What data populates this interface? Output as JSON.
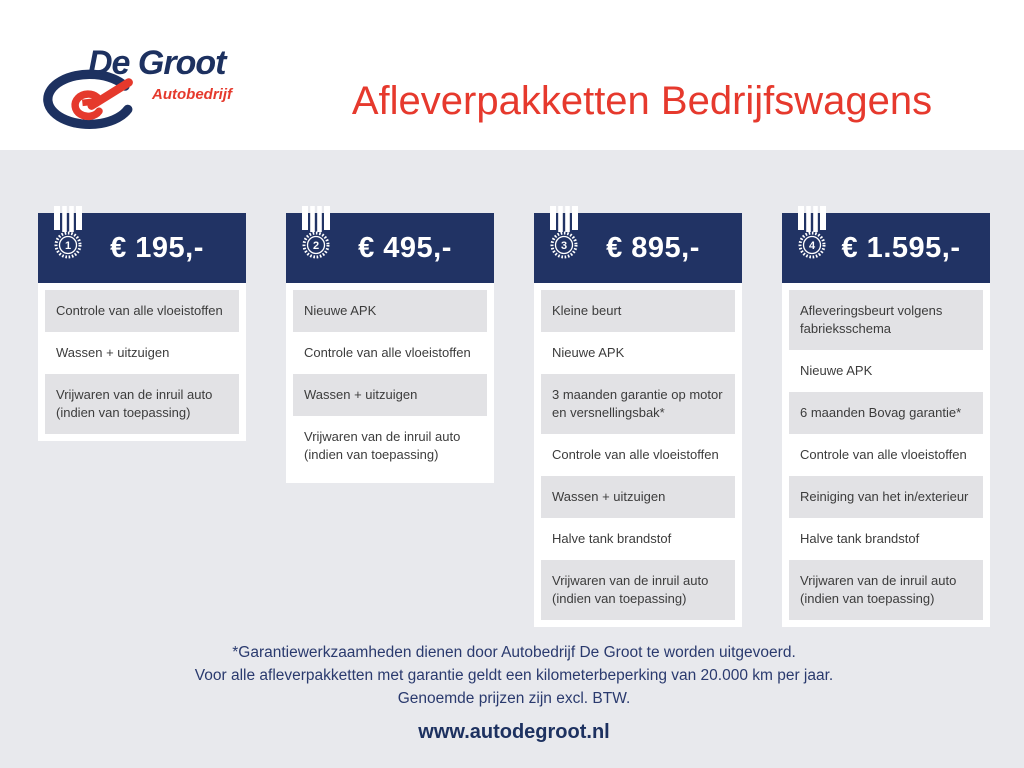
{
  "brand": {
    "name": "De Groot",
    "subtitle": "Autobedrijf"
  },
  "header": {
    "title": "Afleverpakketten Bedrijfswagens"
  },
  "colors": {
    "navy": "#213364",
    "red": "#e6392d",
    "page_background": "#e8e9ed",
    "row_shaded": "#e2e2e5",
    "card_background": "#ffffff",
    "item_text": "#3c3c3c"
  },
  "icons": {
    "package_badge": "medal-ribbon-icon",
    "brand_mark": "ellipse-swoosh-logo-icon"
  },
  "packages": [
    {
      "number": "1",
      "price": "€ 195,-",
      "items": [
        "Controle van alle vloeistoffen",
        "Wassen + uitzuigen",
        "Vrijwaren van de inruil auto (indien van toepassing)"
      ]
    },
    {
      "number": "2",
      "price": "€ 495,-",
      "items": [
        "Nieuwe APK",
        "Controle van alle vloeistoffen",
        "Wassen + uitzuigen",
        "Vrijwaren van de inruil auto (indien van toepassing)"
      ]
    },
    {
      "number": "3",
      "price": "€ 895,-",
      "items": [
        "Kleine beurt",
        "Nieuwe APK",
        "3 maanden garantie op motor en versnellingsbak*",
        "Controle van alle vloeistoffen",
        "Wassen + uitzuigen",
        "Halve tank brandstof",
        "Vrijwaren van de inruil auto (indien van toepassing)"
      ]
    },
    {
      "number": "4",
      "price": "€ 1.595,-",
      "items": [
        "Afleveringsbeurt volgens fabrieksschema",
        "Nieuwe APK",
        "6 maanden Bovag garantie*",
        "Controle van alle vloeistoffen",
        "Reiniging van het in/exterieur",
        "Halve tank brandstof",
        "Vrijwaren van de inruil auto (indien van toepassing)"
      ]
    }
  ],
  "footer": {
    "notes": [
      "*Garantiewerkzaamheden dienen door Autobedrijf De Groot te worden uitgevoerd.",
      "Voor alle afleverpakketten met garantie geldt een kilometerbeperking van 20.000 km per jaar.",
      "Genoemde prijzen zijn excl. BTW."
    ],
    "website": "www.autodegroot.nl"
  }
}
